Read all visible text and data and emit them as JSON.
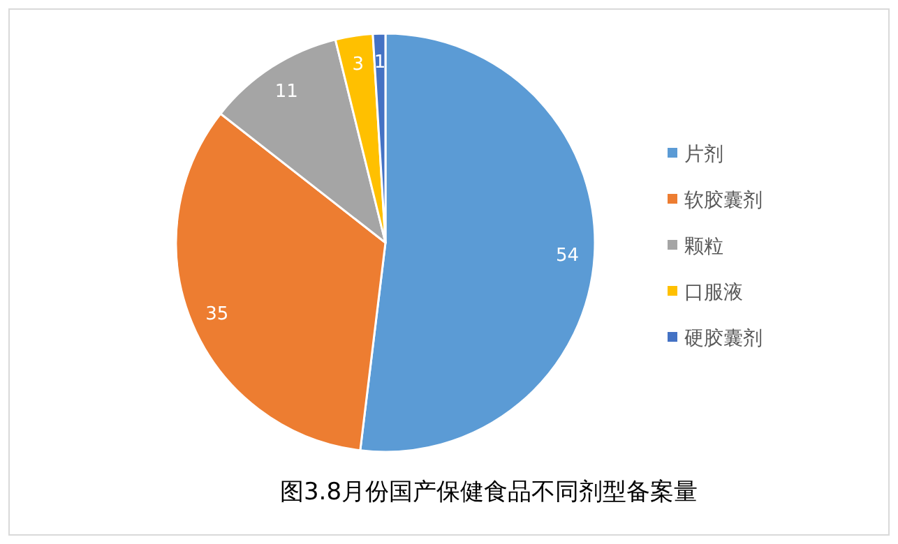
{
  "chart_data": {
    "type": "pie",
    "title": "图3.8月份国产保健食品不同剂型备案量",
    "categories": [
      "片剂",
      "软胶囊剂",
      "颗粒",
      "口服液",
      "硬胶囊剂"
    ],
    "values": [
      54,
      35,
      11,
      3,
      1
    ],
    "colors": [
      "#5b9bd5",
      "#ed7d31",
      "#a5a5a5",
      "#ffc000",
      "#4472c4"
    ],
    "data_labels": true,
    "legend": "right"
  }
}
